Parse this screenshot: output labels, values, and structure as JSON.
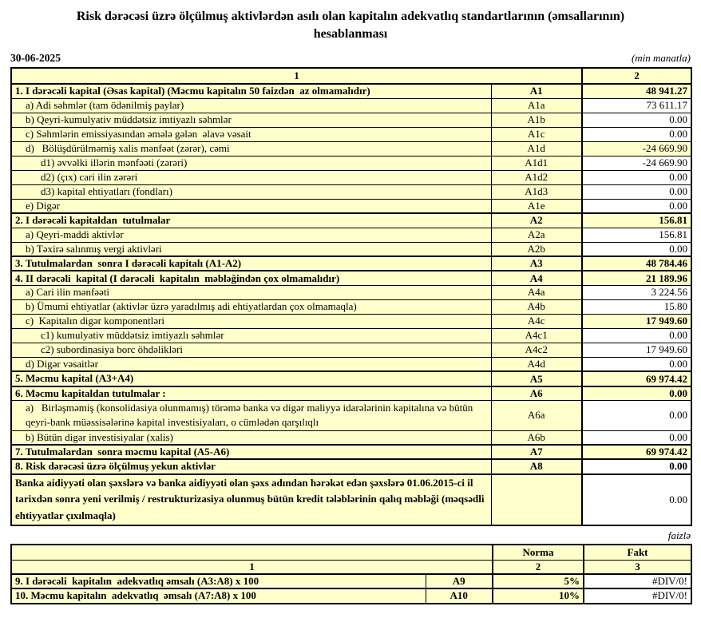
{
  "page": {
    "title_line1": "Risk dərəcəsi üzrə ölçülmuş aktivlərdən asılı olan kapitalın adekvatlıq standartlarının (əmsallarının)",
    "title_line2": "hesablanması",
    "date": "30-06-2025",
    "unit_note": "(min manatla)",
    "percent_note": "faizlə"
  },
  "colors": {
    "cell_yellow": "#FFFFCC",
    "cell_white": "#FFFFFF",
    "border": "#000000"
  },
  "main_table": {
    "header": {
      "col1": "1",
      "col2": "2"
    },
    "rows": [
      {
        "label": "1. I dərəcəli kapital (Əsas kapital) (Məcmu kapitalın 50 faizdən  az olmamalıdır)",
        "code": "A1",
        "value": "48 941.27",
        "level": 0,
        "section": true,
        "vy": true,
        "vb": true
      },
      {
        "label": "a) Adi səhmlər (tam ödənilmiş paylar)",
        "code": "A1a",
        "value": "73 611.17",
        "level": 1
      },
      {
        "label": "b) Qeyri-kumulyativ müddətsiz imtiyazlı səhmlər",
        "code": "A1b",
        "value": "0.00",
        "level": 1
      },
      {
        "label": "c) Səhmlərin emissiyasından əmələ gələn  əlavə vəsait",
        "code": "A1c",
        "value": "0.00",
        "level": 1
      },
      {
        "label": "d)   Bölüşdürülməmiş xalis mənfəət (zərər), cəmi",
        "code": "A1d",
        "value": "-24 669.90",
        "level": 1,
        "vy": true
      },
      {
        "label": "d1) əvvəlki illərin mənfəəti (zərəri)",
        "code": "A1d1",
        "value": "-24 669.90",
        "level": 2
      },
      {
        "label": "d2) (çıx) cari ilin zərəri",
        "code": "A1d2",
        "value": "0.00",
        "level": 2
      },
      {
        "label": "d3) kapital ehtiyatları (fondları)",
        "code": "A1d3",
        "value": "0.00",
        "level": 2
      },
      {
        "label": "e) Digər",
        "code": "A1e",
        "value": "0.00",
        "level": 1
      },
      {
        "label": "2. I dərəcəli kapitaldan  tutulmalar",
        "code": "A2",
        "value": "156.81",
        "level": 0,
        "section": true,
        "vy": true,
        "vb": true
      },
      {
        "label": "a) Qeyri-maddi aktivlər",
        "code": "A2a",
        "value": "156.81",
        "level": 1
      },
      {
        "label": "b) Təxirə salınmış vergi aktivləri",
        "code": "A2b",
        "value": "0.00",
        "level": 1
      },
      {
        "label": "3. Tutulmalardan  sonra I dərəcəli kapitalı (A1-A2)",
        "code": "A3",
        "value": "48 784.46",
        "level": 0,
        "section": true,
        "vy": true,
        "vb": true
      },
      {
        "label": "4. II dərəcəli  kapital (I dərəcəli  kapitalın  məbləğindən çox olmamalıdır)",
        "code": "A4",
        "value": "21 189.96",
        "level": 0,
        "section": true,
        "vy": true,
        "vb": true
      },
      {
        "label": "a) Cari ilin mənfəəti",
        "code": "A4a",
        "value": "3 224.56",
        "level": 1
      },
      {
        "label": "b) Ümumi ehtiyatlar (aktivlər üzrə yaradılmış adi ehtiyatlardan çox olmamaqla)",
        "code": "A4b",
        "value": "15.80",
        "level": 1
      },
      {
        "label": "c)  Kapitalın digər komponentləri",
        "code": "A4c",
        "value": "17 949.60",
        "level": 1,
        "vy": true,
        "vb": true
      },
      {
        "label": "c1) kumulyativ müddətsiz imtiyazlı səhmlər",
        "code": "A4c1",
        "value": "0.00",
        "level": 2
      },
      {
        "label": "c2) subordinasiya borc öhdəlikləri",
        "code": "A4c2",
        "value": "17 949.60",
        "level": 2
      },
      {
        "label": "d) Digər vəsaitlər",
        "code": "A4d",
        "value": "0.00",
        "level": 1
      },
      {
        "label": "5. Məcmu kapital (A3+A4)",
        "code": "A5",
        "value": "69 974.42",
        "level": 0,
        "section": true,
        "vy": true,
        "vb": true
      },
      {
        "label": "6. Məcmu kapitaldan tutulmalar :",
        "code": "A6",
        "value": "0.00",
        "level": 0,
        "section": true,
        "vy": true,
        "vb": true
      },
      {
        "label": "a)   Birləşməmiş (konsolidasiya olunmamış) törəmə banka və digər maliyyə idarələrinin kapitalına və bütün qeyri-bank müəssisələrinə kapital investisiyaları, o cümlədən qarşılıqlı",
        "code": "A6a",
        "value": "0.00",
        "level": 1,
        "lines": 2
      },
      {
        "label": "b) Bütün digər investisiyalar (xalis)",
        "code": "A6b",
        "value": "0.00",
        "level": 1
      },
      {
        "label": "7. Tutulmalardan  sonra məcmu kapital (A5-A6)",
        "code": "A7",
        "value": "69 974.42",
        "level": 0,
        "section": true,
        "vy": true,
        "vb": true
      },
      {
        "label": "8. Risk dərəcəsi üzrə ölçülmuş yekun aktivlər",
        "code": "A8",
        "value": "0.00",
        "level": 0,
        "section": true,
        "vb": true
      },
      {
        "label": "Banka aidiyyəti olan şəxslərə və banka aidiyyəti olan şəxs adından hərəkət edən şəxslərə 01.06.2015-ci il tarixdən sonra yeni verilmiş / restrukturizasiya olunmuş bütün kredit tələblərinin qalıq məbləği (məqsədli ehtiyyatlar çıxılmaqla)",
        "code": "",
        "value": "0.00",
        "level": 0,
        "section": true,
        "lines": 3
      }
    ]
  },
  "ratio_table": {
    "header1": {
      "norma": "Norma",
      "fakt": "Fakt"
    },
    "header2": {
      "c1": "1",
      "c2": "2",
      "c3": "3"
    },
    "rows": [
      {
        "label": "9. I dərəcəli  kapitalın  adekvatlıq əmsalı (A3:A8) x 100",
        "code": "A9",
        "norma": "5%",
        "fakt": "#DIV/0!"
      },
      {
        "label": "10. Məcmu kapitalın  adekvatlıq  əmsalı (A7:A8) x 100",
        "code": "A10",
        "norma": "10%",
        "fakt": "#DIV/0!"
      }
    ]
  }
}
